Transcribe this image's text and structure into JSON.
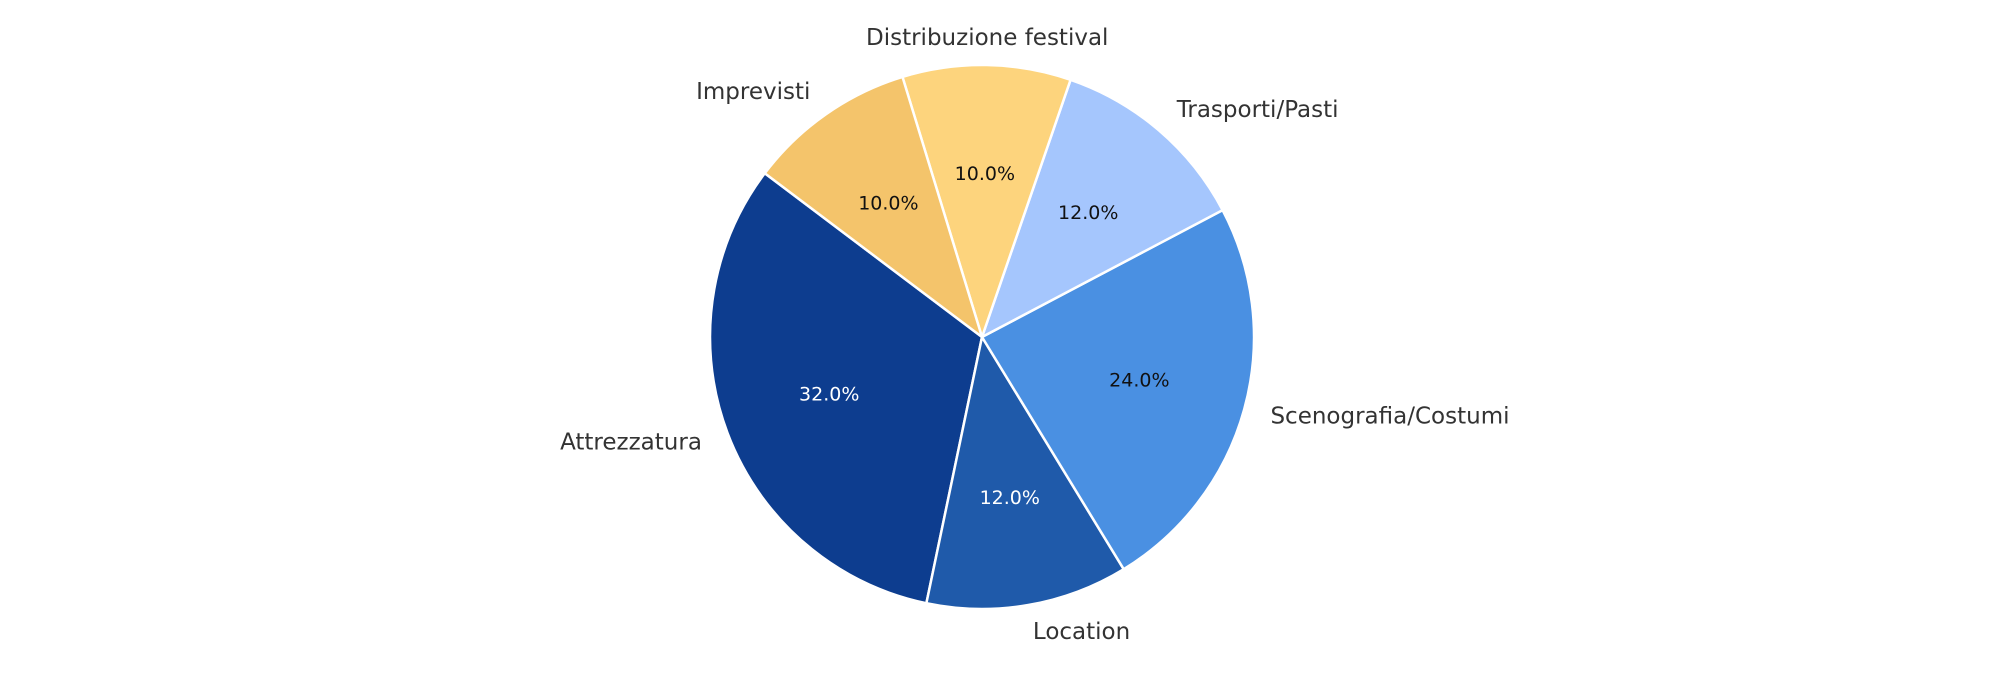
{
  "chart_data": {
    "type": "pie",
    "title": "",
    "start_angle_deg": 143,
    "direction": "counterclockwise",
    "slices": [
      {
        "label": "Attrezzatura",
        "value": 32.0,
        "pct_label": "32.0%",
        "color": "#0d3d8f",
        "pct_color": "#ffffff"
      },
      {
        "label": "Location",
        "value": 12.0,
        "pct_label": "12.0%",
        "color": "#1f5aaa",
        "pct_color": "#ffffff"
      },
      {
        "label": "Scenografia/Costumi",
        "value": 24.0,
        "pct_label": "24.0%",
        "color": "#4a90e2",
        "pct_color": "#111111"
      },
      {
        "label": "Trasporti/Pasti",
        "value": 12.0,
        "pct_label": "12.0%",
        "color": "#a5c6fd",
        "pct_color": "#111111"
      },
      {
        "label": "Distribuzione festival",
        "value": 10.0,
        "pct_label": "10.0%",
        "color": "#fdd47d",
        "pct_color": "#111111"
      },
      {
        "label": "Imprevisti",
        "value": 10.0,
        "pct_label": "10.0%",
        "color": "#f4c46b",
        "pct_color": "#111111"
      }
    ]
  }
}
